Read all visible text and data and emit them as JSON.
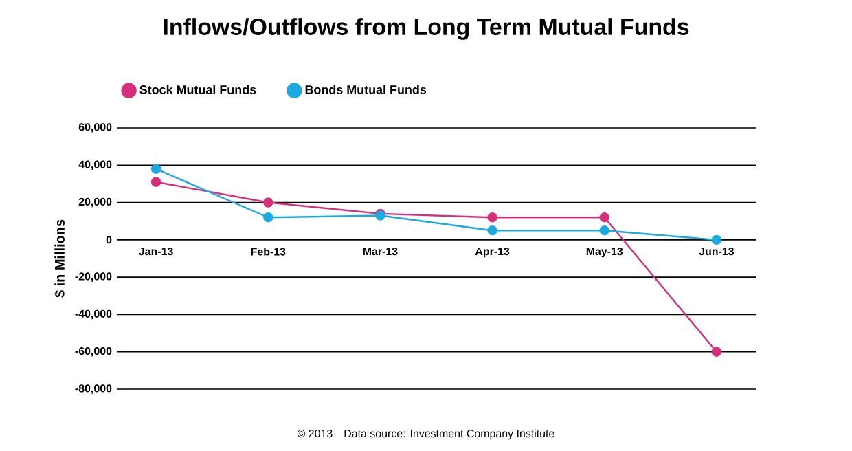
{
  "chart_data": {
    "type": "line",
    "title": "Inflows/Outflows from Long Term Mutual Funds",
    "ylabel": "$ in Millions",
    "categories": [
      "Jan-13",
      "Feb-13",
      "Mar-13",
      "Apr-13",
      "May-13",
      "Jun-13"
    ],
    "series": [
      {
        "name": "Stock Mutual Funds",
        "color": "#d6307a",
        "values": [
          31000,
          20000,
          14000,
          12000,
          12000,
          -60000
        ]
      },
      {
        "name": "Bonds Mutual Funds",
        "color": "#1ba9e0",
        "values": [
          38000,
          12000,
          13000,
          5000,
          5000,
          0
        ]
      }
    ],
    "ylim": [
      -80000,
      60000
    ],
    "yticks": [
      {
        "value": -80000,
        "label": "-80,000"
      },
      {
        "value": -60000,
        "label": "-60,000"
      },
      {
        "value": -40000,
        "label": "-40,000"
      },
      {
        "value": -20000,
        "label": "-20,000"
      },
      0,
      {
        "value": 20000,
        "label": "20,000"
      },
      {
        "value": 40000,
        "label": "40,000"
      },
      {
        "value": 60000,
        "label": "60,000"
      }
    ],
    "grid": "y",
    "legend": "top left",
    "marker": "circle",
    "line_style": "solid",
    "annotations": [
      "© 2013",
      "Data source: Investment Company Institute"
    ]
  }
}
